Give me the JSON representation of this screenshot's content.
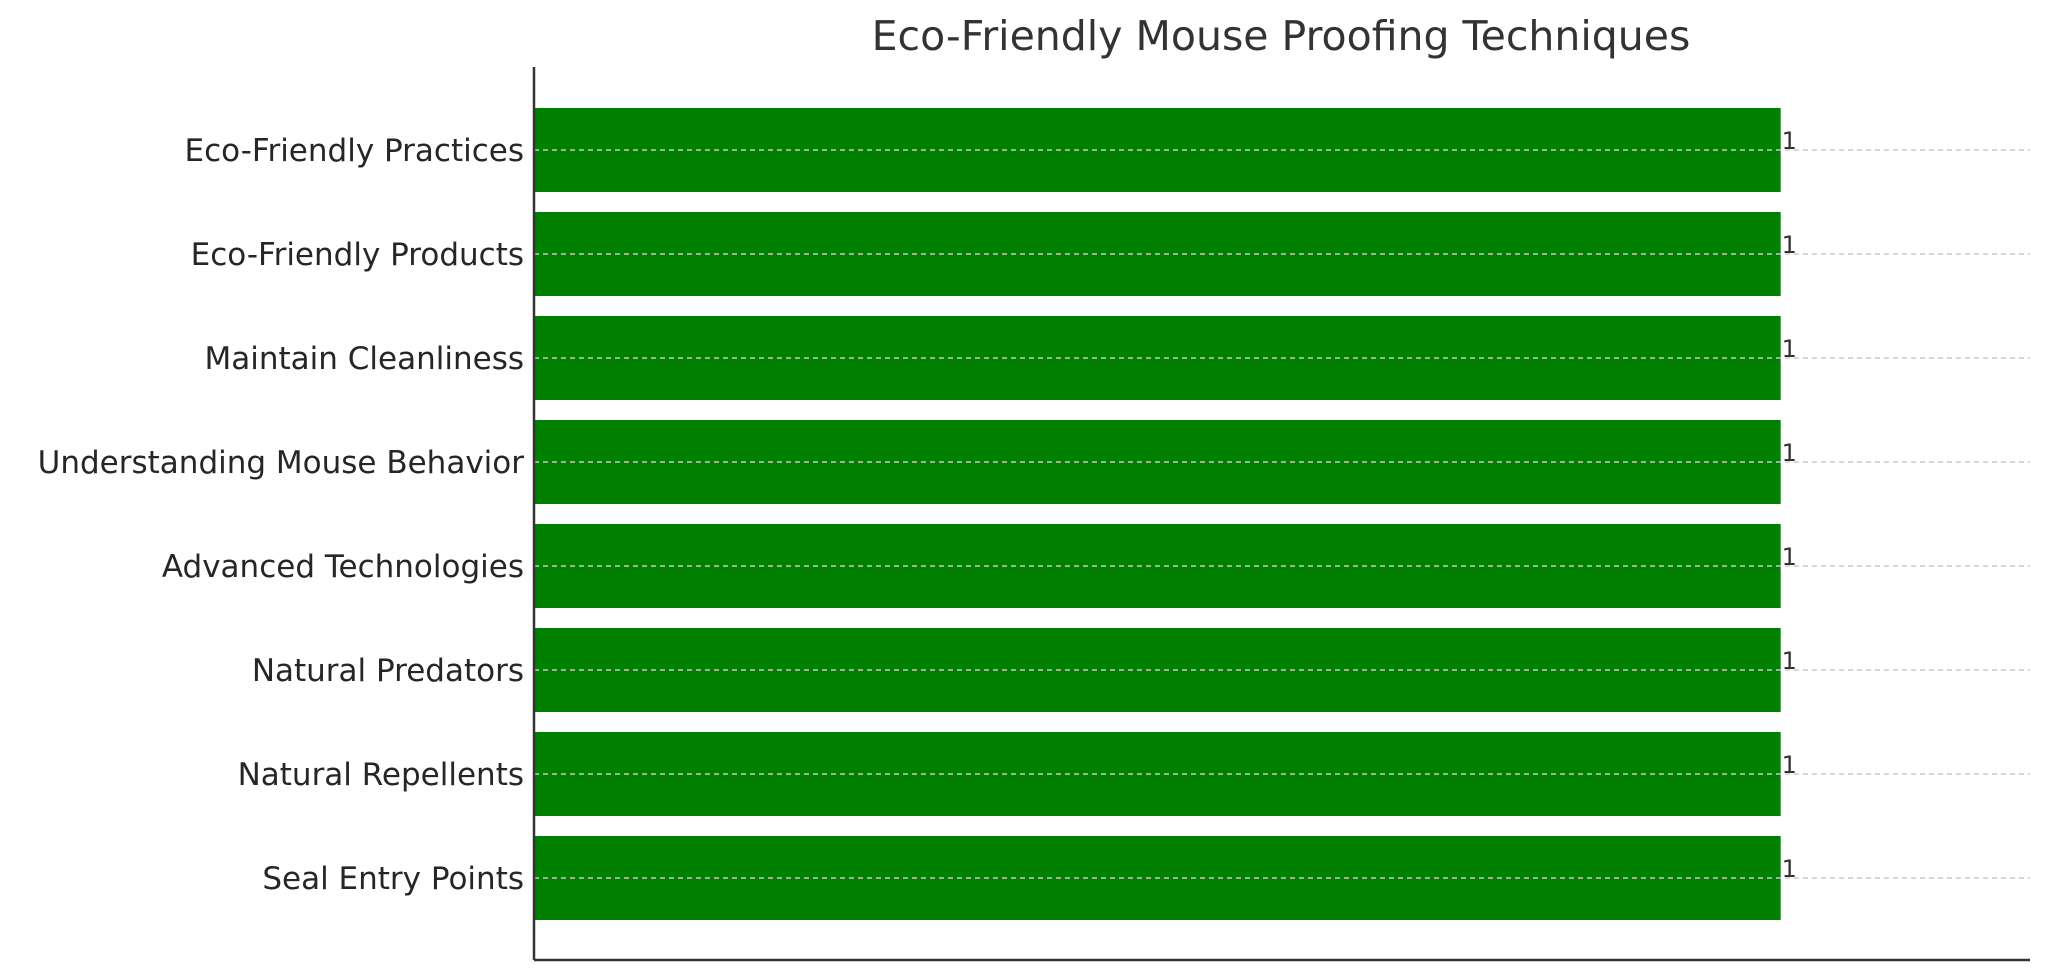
{
  "chart_data": {
    "type": "bar",
    "orientation": "horizontal",
    "title": "Eco-Friendly Mouse Proofing Techniques",
    "xlabel": "",
    "ylabel": "",
    "categories": [
      "Seal Entry Points",
      "Natural Repellents",
      "Natural Predators",
      "Advanced Technologies",
      "Understanding Mouse Behavior",
      "Maintain Cleanliness",
      "Eco-Friendly Products",
      "Eco-Friendly Practices"
    ],
    "values": [
      1,
      1,
      1,
      1,
      1,
      1,
      1,
      1
    ],
    "data_labels": [
      "1",
      "1",
      "1",
      "1",
      "1",
      "1",
      "1",
      "1"
    ],
    "xlim": [
      0,
      1.2
    ],
    "grid": "horizontal dashed lines at each category",
    "bar_color": "#008000",
    "grid_color": "#c8c8c8",
    "axis_color": "#333333"
  }
}
